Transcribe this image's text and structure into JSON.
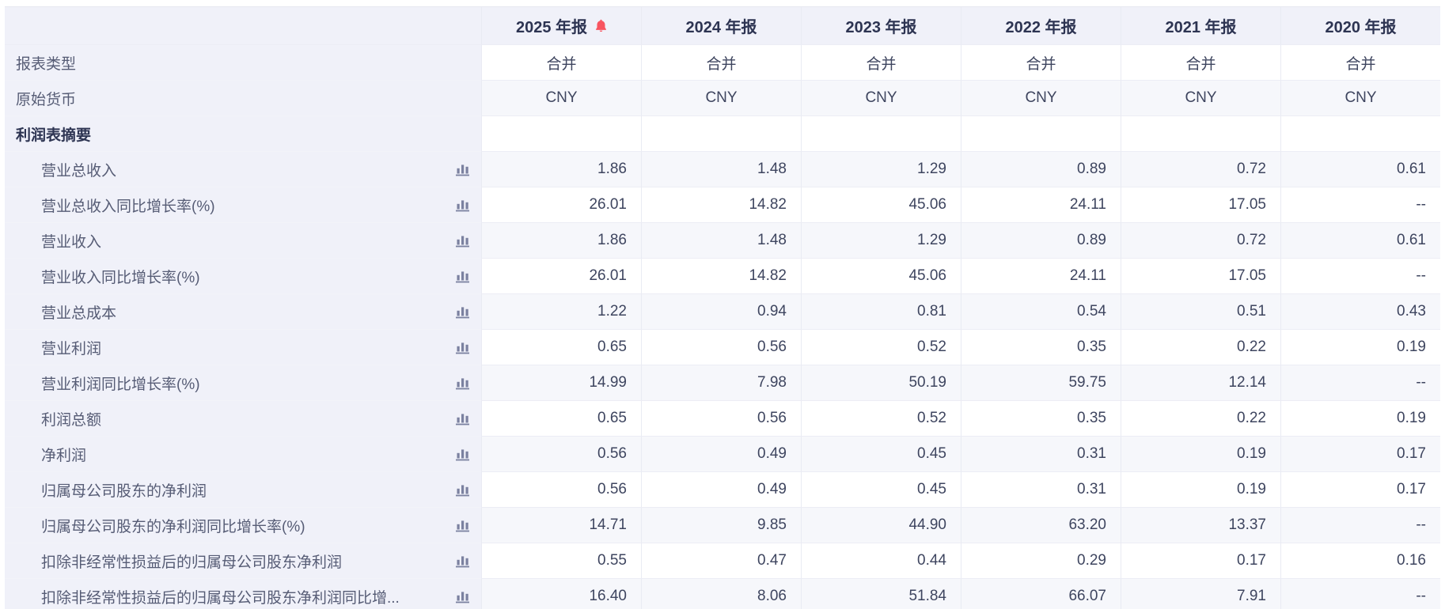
{
  "table": {
    "columns": [
      "2025 年报",
      "2024 年报",
      "2023 年报",
      "2022 年报",
      "2021 年报",
      "2020 年报"
    ],
    "alert_on_column": "2025 年报",
    "icons": {
      "header_alert": "bell-icon",
      "row_trend": "bar-chart-icon"
    },
    "colors": {
      "header_bg": "#f0f1f9",
      "stripe_bg": "#f6f7fb",
      "header_text": "#2d3452",
      "label_text": "#565c75",
      "value_text": "#3e455f",
      "bell": "#f85460",
      "chart_icon": "#7b81a0",
      "border": "#e9ebf3"
    },
    "meta_rows": [
      {
        "label": "报表类型",
        "values": [
          "合并",
          "合并",
          "合并",
          "合并",
          "合并",
          "合并"
        ]
      },
      {
        "label": "原始货币",
        "values": [
          "CNY",
          "CNY",
          "CNY",
          "CNY",
          "CNY",
          "CNY"
        ]
      }
    ],
    "section_label": "利润表摘要",
    "rows": [
      {
        "label": "营业总收入",
        "values": [
          "1.86",
          "1.48",
          "1.29",
          "0.89",
          "0.72",
          "0.61"
        ]
      },
      {
        "label": "营业总收入同比增长率(%)",
        "values": [
          "26.01",
          "14.82",
          "45.06",
          "24.11",
          "17.05",
          "--"
        ]
      },
      {
        "label": "营业收入",
        "values": [
          "1.86",
          "1.48",
          "1.29",
          "0.89",
          "0.72",
          "0.61"
        ]
      },
      {
        "label": "营业收入同比增长率(%)",
        "values": [
          "26.01",
          "14.82",
          "45.06",
          "24.11",
          "17.05",
          "--"
        ]
      },
      {
        "label": "营业总成本",
        "values": [
          "1.22",
          "0.94",
          "0.81",
          "0.54",
          "0.51",
          "0.43"
        ]
      },
      {
        "label": "营业利润",
        "values": [
          "0.65",
          "0.56",
          "0.52",
          "0.35",
          "0.22",
          "0.19"
        ]
      },
      {
        "label": "营业利润同比增长率(%)",
        "values": [
          "14.99",
          "7.98",
          "50.19",
          "59.75",
          "12.14",
          "--"
        ]
      },
      {
        "label": "利润总额",
        "values": [
          "0.65",
          "0.56",
          "0.52",
          "0.35",
          "0.22",
          "0.19"
        ]
      },
      {
        "label": "净利润",
        "values": [
          "0.56",
          "0.49",
          "0.45",
          "0.31",
          "0.19",
          "0.17"
        ]
      },
      {
        "label": "归属母公司股东的净利润",
        "values": [
          "0.56",
          "0.49",
          "0.45",
          "0.31",
          "0.19",
          "0.17"
        ]
      },
      {
        "label": "归属母公司股东的净利润同比增长率(%)",
        "values": [
          "14.71",
          "9.85",
          "44.90",
          "63.20",
          "13.37",
          "--"
        ]
      },
      {
        "label": "扣除非经常性损益后的归属母公司股东净利润",
        "values": [
          "0.55",
          "0.47",
          "0.44",
          "0.29",
          "0.17",
          "0.16"
        ]
      },
      {
        "label": "扣除非经常性损益后的归属母公司股东净利润同比增...",
        "values": [
          "16.40",
          "8.06",
          "51.84",
          "66.07",
          "7.91",
          "--"
        ]
      }
    ]
  }
}
